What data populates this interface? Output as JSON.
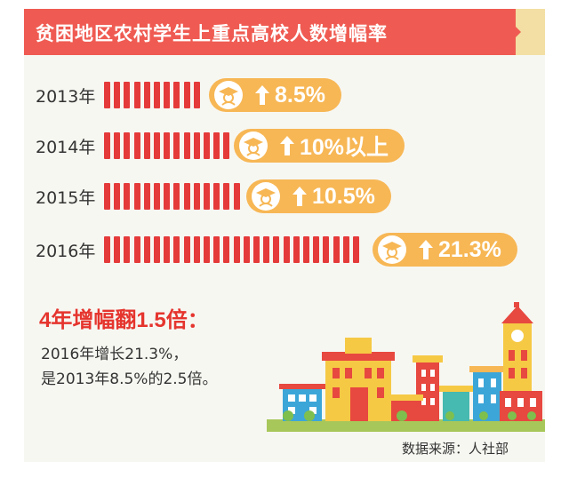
{
  "header": {
    "title": "贫困地区农村学生上重点高校人数增幅率"
  },
  "chart_data": {
    "type": "bar",
    "orientation": "horizontal",
    "categories": [
      "2013年",
      "2014年",
      "2015年",
      "2016年"
    ],
    "values": [
      8.5,
      10,
      10.5,
      21.3
    ],
    "value_labels": [
      "8.5%",
      "10%以上",
      "10.5%",
      "21.3%"
    ],
    "unit": "%",
    "bar_color": "#e53a3a",
    "label_color": "#f7b755"
  },
  "summary": {
    "title": "4年增幅翻1.5倍：",
    "line1": "2016年增长21.3%，",
    "line2": "是2013年8.5%的2.5倍。"
  },
  "source": "数据来源：人社部",
  "colors": {
    "accent": "#ef5b52",
    "title_red": "#e5352e",
    "pill": "#f7b755",
    "grass": "#a8c75a"
  }
}
